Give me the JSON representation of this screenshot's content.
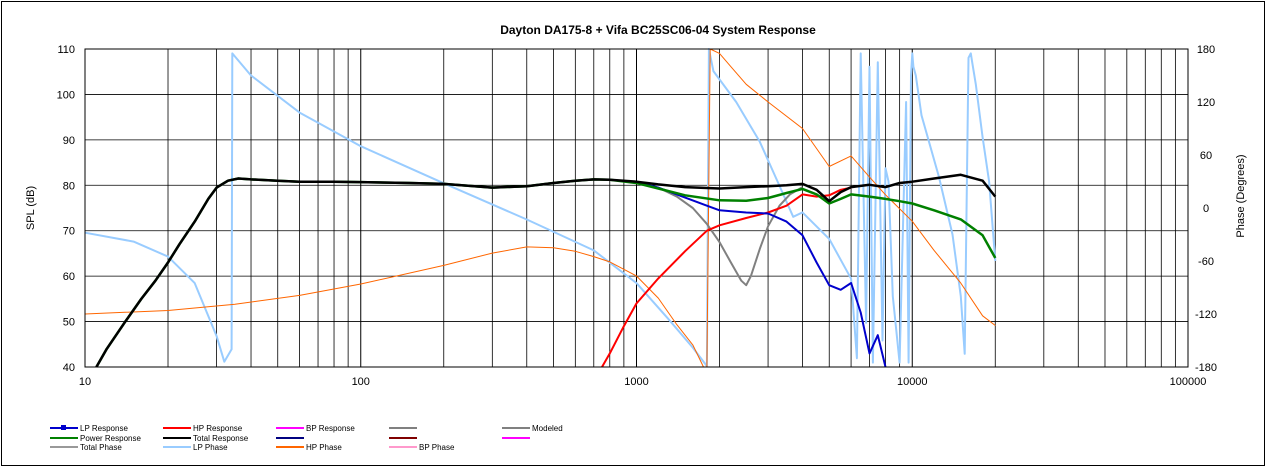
{
  "chart_data": {
    "type": "line",
    "title": "Dayton DA175-8  + Vifa BC25SC06-04      System Response",
    "xlabel": "",
    "ylabel": "SPL (dB)",
    "y2label": "Phase (Degrees)",
    "x_scale": "log",
    "xlim": [
      10,
      100000
    ],
    "ylim": [
      40,
      110
    ],
    "y2lim": [
      -180,
      180
    ],
    "grid": true,
    "legend_position": "bottom",
    "x_ticks": [
      "10",
      "100",
      "1000",
      "10000",
      "100000"
    ],
    "y_ticks": [
      "40",
      "50",
      "60",
      "70",
      "80",
      "90",
      "100",
      "110"
    ],
    "y2_ticks": [
      "-180",
      "-120",
      "-60",
      "0",
      "60",
      "120",
      "180"
    ],
    "legend": [
      {
        "label": "LP Response",
        "color": "#0000cc",
        "marker": true
      },
      {
        "label": "HP Response",
        "color": "#ff0000"
      },
      {
        "label": "BP Response",
        "color": "#ff00ff"
      },
      {
        "label": "",
        "color": "#808080"
      },
      {
        "label": "Modeled",
        "color": "#808080"
      },
      {
        "label": "Power Response",
        "color": "#008000"
      },
      {
        "label": "Total Response",
        "color": "#000000"
      },
      {
        "label": "",
        "color": "#000080"
      },
      {
        "label": "",
        "color": "#800000"
      },
      {
        "label": "",
        "color": "#ff00ff"
      },
      {
        "label": "Total Phase",
        "color": "#999999"
      },
      {
        "label": "LP Phase",
        "color": "#99ccff"
      },
      {
        "label": "HP Phase",
        "color": "#ff6600"
      },
      {
        "label": "BP Phase",
        "color": "#ff99cc"
      }
    ],
    "series": [
      {
        "name": "Total Response",
        "axis": "left",
        "color": "#000000",
        "width": 2.5,
        "x": [
          11,
          12,
          14,
          16,
          18,
          20,
          22,
          25,
          28,
          30,
          33,
          36,
          40,
          50,
          60,
          80,
          100,
          150,
          200,
          300,
          400,
          500,
          600,
          700,
          800,
          1000,
          1200,
          1500,
          2000,
          2500,
          3000,
          3500,
          4000,
          4500,
          5000,
          5500,
          6000,
          7000,
          8000,
          9000,
          10000,
          12000,
          15000,
          18000,
          20000
        ],
        "y": [
          40,
          44,
          50,
          55,
          59,
          63,
          67,
          72,
          77,
          79.5,
          81,
          81.5,
          81.3,
          81,
          80.8,
          80.8,
          80.7,
          80.5,
          80.3,
          79.5,
          79.8,
          80.5,
          81,
          81.3,
          81.2,
          80.8,
          80.2,
          79.6,
          79.3,
          79.6,
          79.8,
          80,
          80.3,
          79,
          76.5,
          78.5,
          79.6,
          80.1,
          79.6,
          80.5,
          80.8,
          81.5,
          82.3,
          81,
          77.5
        ]
      },
      {
        "name": "Power Response",
        "axis": "left",
        "color": "#008000",
        "width": 2.5,
        "x": [
          11,
          12,
          14,
          16,
          18,
          20,
          22,
          25,
          28,
          30,
          33,
          36,
          40,
          50,
          60,
          80,
          100,
          150,
          200,
          300,
          400,
          500,
          600,
          700,
          800,
          1000,
          1200,
          1500,
          2000,
          2500,
          3000,
          3500,
          4000,
          4500,
          5000,
          5500,
          6000,
          7000,
          8000,
          9000,
          10000,
          12000,
          15000,
          18000,
          20000
        ],
        "y": [
          40,
          44,
          50,
          55,
          59,
          63,
          67,
          72,
          77,
          79.5,
          81,
          81.5,
          81.3,
          81,
          80.8,
          80.8,
          80.7,
          80.5,
          80.3,
          79.5,
          79.8,
          80.5,
          81,
          81.3,
          81.2,
          80.5,
          79.3,
          77.8,
          76.7,
          76.6,
          77.2,
          78.3,
          79.2,
          78,
          76,
          77,
          78,
          77.5,
          77,
          76.5,
          76,
          74.5,
          72.5,
          69,
          64
        ]
      },
      {
        "name": "LP Response",
        "axis": "left",
        "color": "#0000cc",
        "width": 2,
        "x": [
          1000,
          1200,
          1500,
          1800,
          2000,
          2500,
          3000,
          3500,
          4000,
          4500,
          5000,
          5500,
          6000,
          6500,
          7000,
          7500,
          8000
        ],
        "y": [
          80.7,
          79.5,
          77.3,
          75.5,
          74.5,
          74,
          73.8,
          72,
          69,
          63,
          58,
          57,
          58.5,
          52,
          43,
          47,
          40
        ]
      },
      {
        "name": "HP Response",
        "axis": "left",
        "color": "#ff0000",
        "width": 2,
        "x": [
          750,
          800,
          900,
          1000,
          1200,
          1500,
          1800,
          2000,
          2500,
          3000,
          3500,
          4000,
          4500,
          5000,
          5500,
          6000
        ],
        "y": [
          40,
          43,
          49,
          54,
          59.5,
          65.5,
          70,
          71.2,
          72.8,
          74,
          75.5,
          78,
          77.5,
          77.8,
          79,
          79.5
        ]
      },
      {
        "name": "Modeled",
        "axis": "left",
        "color": "#808080",
        "width": 2,
        "x": [
          1000,
          1200,
          1400,
          1600,
          1800,
          2000,
          2200,
          2400,
          2500,
          2600,
          2800,
          3000,
          3300,
          3600,
          4000
        ],
        "y": [
          80.5,
          79.5,
          77.5,
          75,
          71.5,
          67.5,
          63,
          59,
          58,
          60,
          66,
          71,
          75.5,
          78,
          79.6
        ]
      },
      {
        "name": "HP Phase",
        "axis": "right",
        "color": "#ff6600",
        "width": 1,
        "x": [
          10,
          20,
          35,
          60,
          100,
          200,
          300,
          400,
          500,
          600,
          700,
          800,
          1000,
          1200,
          1400,
          1600,
          1750,
          1800,
          1850,
          2000,
          2200,
          2500,
          3000,
          4000,
          5000,
          6000,
          7000,
          8000,
          10000,
          12000,
          15000,
          18000,
          20000
        ],
        "y": [
          -120,
          -116,
          -109,
          -99,
          -86,
          -65,
          -51,
          -44,
          -45,
          -49,
          -55,
          -61,
          -77,
          -102,
          -132,
          -155,
          -180,
          -180,
          180,
          175,
          160,
          140,
          120,
          90,
          47,
          59,
          35,
          15,
          -15,
          -48,
          -85,
          -122,
          -133
        ]
      },
      {
        "name": "LP Phase",
        "axis": "right",
        "color": "#99ccff",
        "width": 2,
        "x": [
          10,
          15,
          20,
          25,
          30,
          32,
          34,
          34.2,
          40,
          60,
          100,
          200,
          400,
          700,
          1000,
          1300,
          1600,
          1800,
          1830,
          1900,
          2300,
          2800,
          3300,
          3700,
          4000,
          5000,
          6000,
          6300,
          6500,
          6800,
          7000,
          7200,
          7500,
          7800,
          8000,
          8200,
          8500,
          9000,
          9500,
          9700,
          9900,
          10000,
          10100,
          10300,
          10800,
          11500,
          12500,
          14000,
          15000,
          15500,
          16000,
          16300,
          16500,
          17000,
          18000,
          19000,
          20000
        ],
        "y": [
          -28,
          -38,
          -55,
          -85,
          -145,
          -174,
          -160,
          175,
          150,
          108,
          70,
          28,
          -13,
          -48,
          -85,
          -125,
          -158,
          -179,
          180,
          155,
          120,
          75,
          25,
          -10,
          -5,
          -35,
          -80,
          -170,
          175,
          -130,
          160,
          -175,
          165,
          -150,
          45,
          30,
          -100,
          -175,
          120,
          -175,
          150,
          175,
          160,
          150,
          105,
          75,
          35,
          -30,
          -100,
          -165,
          170,
          175,
          165,
          140,
          80,
          30,
          -60
        ]
      }
    ]
  }
}
